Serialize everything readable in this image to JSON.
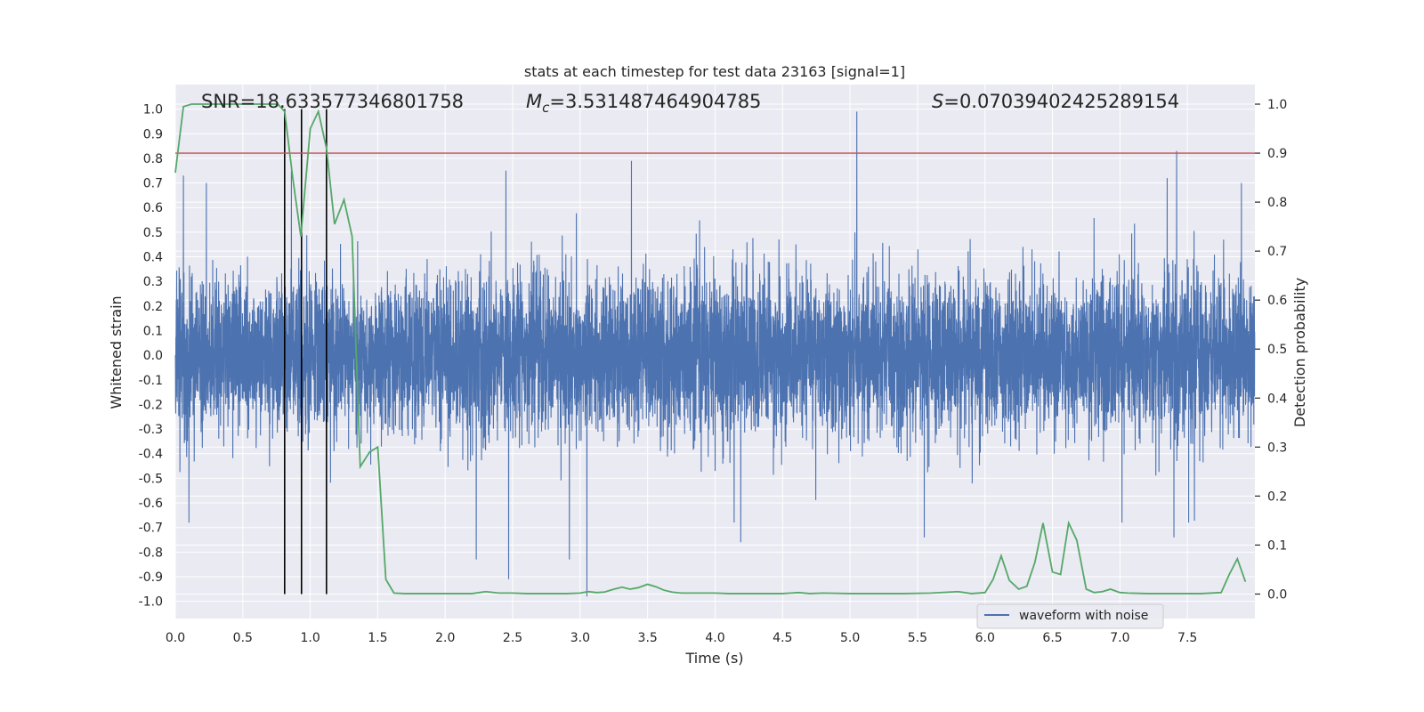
{
  "chart_data": {
    "type": "line",
    "title": "stats at each timestep for test data 23163 [signal=1]",
    "xlabel": "Time (s)",
    "ylabel_left": "Whitened strain",
    "ylabel_right": "Detection probability",
    "xlim": [
      0,
      8
    ],
    "ylim_left": [
      -1.07,
      1.1
    ],
    "ylim_right": [
      -0.05,
      1.04
    ],
    "x_ticks": [
      "0.0",
      "0.5",
      "1.0",
      "1.5",
      "2.0",
      "2.5",
      "3.0",
      "3.5",
      "4.0",
      "4.5",
      "5.0",
      "5.5",
      "6.0",
      "6.5",
      "7.0",
      "7.5"
    ],
    "x_tick_values": [
      0,
      0.5,
      1,
      1.5,
      2,
      2.5,
      3,
      3.5,
      4,
      4.5,
      5,
      5.5,
      6,
      6.5,
      7,
      7.5
    ],
    "y_ticks_left": [
      "1.0",
      "0.9",
      "0.8",
      "0.7",
      "0.6",
      "0.5",
      "0.4",
      "0.3",
      "0.2",
      "0.1",
      "0.0",
      "-0.1",
      "-0.2",
      "-0.3",
      "-0.4",
      "-0.5",
      "-0.6",
      "-0.7",
      "-0.8",
      "-0.9",
      "-1.0"
    ],
    "y_tick_values_left": [
      1.0,
      0.9,
      0.8,
      0.7,
      0.6,
      0.5,
      0.4,
      0.3,
      0.2,
      0.1,
      0.0,
      -0.1,
      -0.2,
      -0.3,
      -0.4,
      -0.5,
      -0.6,
      -0.7,
      -0.8,
      -0.9,
      -1.0
    ],
    "y_ticks_right": [
      "1.0",
      "0.9",
      "0.8",
      "0.7",
      "0.6",
      "0.5",
      "0.4",
      "0.3",
      "0.2",
      "0.1",
      "0.0"
    ],
    "y_tick_values_right": [
      1.0,
      0.9,
      0.8,
      0.7,
      0.6,
      0.5,
      0.4,
      0.3,
      0.2,
      0.1,
      0.0
    ],
    "grid": true,
    "annotations": {
      "snr": "SNR=18.633577346801758",
      "mc_symbol": "M",
      "mc_subscript": "c",
      "mc_value": "=3.531487464904785",
      "s_symbol": "S",
      "s_value": "=0.07039402425289154"
    },
    "threshold": {
      "axis": "right",
      "value": 0.9,
      "color": "#c44e52"
    },
    "vertical_markers_x": [
      0.81,
      0.935,
      1.12
    ],
    "series": [
      {
        "name": "waveform with noise",
        "axis": "left",
        "color": "#4c72b0",
        "envelope": {
          "sample_count": 8000,
          "typical_amplitude": 0.28,
          "seed": 23163,
          "max_peak": {
            "x": 5.05,
            "y": 0.99
          },
          "min_trough": {
            "x": 3.05,
            "y": -0.98
          },
          "peaks": [
            {
              "x": 0.06,
              "y": 0.73
            },
            {
              "x": 0.23,
              "y": 0.7
            },
            {
              "x": 0.86,
              "y": 0.75
            },
            {
              "x": 2.45,
              "y": 0.75
            },
            {
              "x": 3.38,
              "y": 0.79
            },
            {
              "x": 7.35,
              "y": 0.72
            },
            {
              "x": 7.42,
              "y": 0.83
            },
            {
              "x": 7.9,
              "y": 0.7
            }
          ],
          "troughs": [
            {
              "x": 2.23,
              "y": -0.83
            },
            {
              "x": 2.47,
              "y": -0.91
            },
            {
              "x": 2.92,
              "y": -0.83
            },
            {
              "x": 4.19,
              "y": -0.76
            },
            {
              "x": 5.55,
              "y": -0.74
            },
            {
              "x": 7.4,
              "y": -0.74
            }
          ]
        }
      },
      {
        "name": "",
        "axis": "right",
        "color": "#55a868",
        "x": [
          0,
          0.06,
          0.12,
          0.2,
          0.3,
          0.4,
          0.5,
          0.6,
          0.7,
          0.76,
          0.81,
          0.87,
          0.93,
          1.0,
          1.06,
          1.12,
          1.18,
          1.25,
          1.31,
          1.37,
          1.44,
          1.5,
          1.56,
          1.62,
          1.7,
          1.8,
          1.9,
          2.0,
          2.1,
          2.2,
          2.3,
          2.4,
          2.5,
          2.6,
          2.7,
          2.8,
          2.9,
          3.0,
          3.06,
          3.12,
          3.18,
          3.25,
          3.31,
          3.37,
          3.43,
          3.5,
          3.56,
          3.62,
          3.68,
          3.75,
          3.85,
          4.0,
          4.1,
          4.3,
          4.5,
          4.62,
          4.7,
          4.8,
          5.0,
          5.2,
          5.4,
          5.6,
          5.8,
          5.9,
          6.0,
          6.06,
          6.12,
          6.18,
          6.25,
          6.31,
          6.37,
          6.43,
          6.5,
          6.56,
          6.62,
          6.68,
          6.75,
          6.81,
          6.87,
          6.93,
          7.0,
          7.06,
          7.2,
          7.4,
          7.6,
          7.75,
          7.81,
          7.87,
          7.93
        ],
        "y": [
          0.86,
          0.995,
          1.0,
          1.0,
          1.0,
          1.0,
          1.0,
          1.0,
          1.0,
          1.0,
          0.985,
          0.85,
          0.73,
          0.95,
          0.985,
          0.91,
          0.755,
          0.805,
          0.73,
          0.26,
          0.29,
          0.3,
          0.03,
          0.002,
          0.001,
          0.001,
          0.001,
          0.001,
          0.001,
          0.001,
          0.005,
          0.002,
          0.002,
          0.001,
          0.001,
          0.001,
          0.001,
          0.002,
          0.005,
          0.003,
          0.004,
          0.01,
          0.014,
          0.01,
          0.013,
          0.02,
          0.015,
          0.008,
          0.004,
          0.002,
          0.002,
          0.002,
          0.001,
          0.001,
          0.001,
          0.003,
          0.001,
          0.002,
          0.001,
          0.001,
          0.001,
          0.002,
          0.005,
          0.001,
          0.003,
          0.03,
          0.078,
          0.028,
          0.01,
          0.016,
          0.065,
          0.145,
          0.045,
          0.04,
          0.145,
          0.11,
          0.01,
          0.003,
          0.005,
          0.01,
          0.003,
          0.002,
          0.001,
          0.001,
          0.001,
          0.003,
          0.04,
          0.072,
          0.025
        ]
      }
    ],
    "legend": {
      "entries": [
        "waveform with noise"
      ],
      "location": "lower right"
    }
  }
}
